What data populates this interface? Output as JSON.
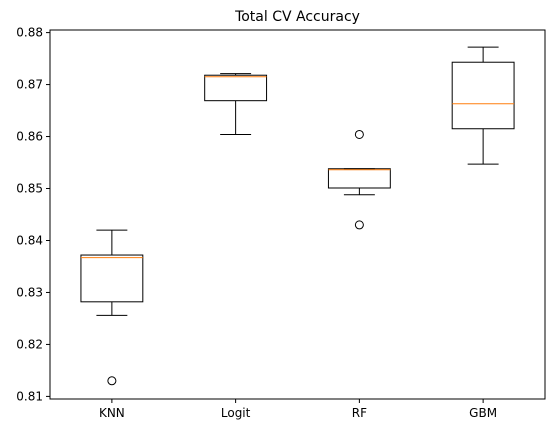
{
  "chart_data": {
    "type": "boxplot",
    "title": "Total CV Accuracy",
    "xlabel": "",
    "ylabel": "",
    "categories": [
      "KNN",
      "Logit",
      "RF",
      "GBM"
    ],
    "ylim": [
      0.8095,
      0.8805
    ],
    "yticks": [
      0.81,
      0.82,
      0.83,
      0.84,
      0.85,
      0.86,
      0.87,
      0.88
    ],
    "ytick_labels": [
      "0.81",
      "0.82",
      "0.83",
      "0.84",
      "0.85",
      "0.86",
      "0.87",
      "0.88"
    ],
    "grid": false,
    "boxes": [
      {
        "category": "KNN",
        "whisker_low": 0.8256,
        "q1": 0.8282,
        "median": 0.8367,
        "q3": 0.8372,
        "whisker_high": 0.842,
        "outliers": [
          0.813
        ]
      },
      {
        "category": "Logit",
        "whisker_low": 0.8604,
        "q1": 0.8669,
        "median": 0.8715,
        "q3": 0.8718,
        "whisker_high": 0.8721,
        "outliers": []
      },
      {
        "category": "RF",
        "whisker_low": 0.8488,
        "q1": 0.8501,
        "median": 0.8536,
        "q3": 0.8538,
        "whisker_high": 0.8538,
        "outliers": [
          0.8604,
          0.843
        ]
      },
      {
        "category": "GBM",
        "whisker_low": 0.8547,
        "q1": 0.8615,
        "median": 0.8663,
        "q3": 0.8743,
        "whisker_high": 0.8772,
        "outliers": []
      }
    ],
    "colors": {
      "box": "#000000",
      "median": "#ff7f0e",
      "outlier": "#000000",
      "background": "#ffffff"
    }
  }
}
